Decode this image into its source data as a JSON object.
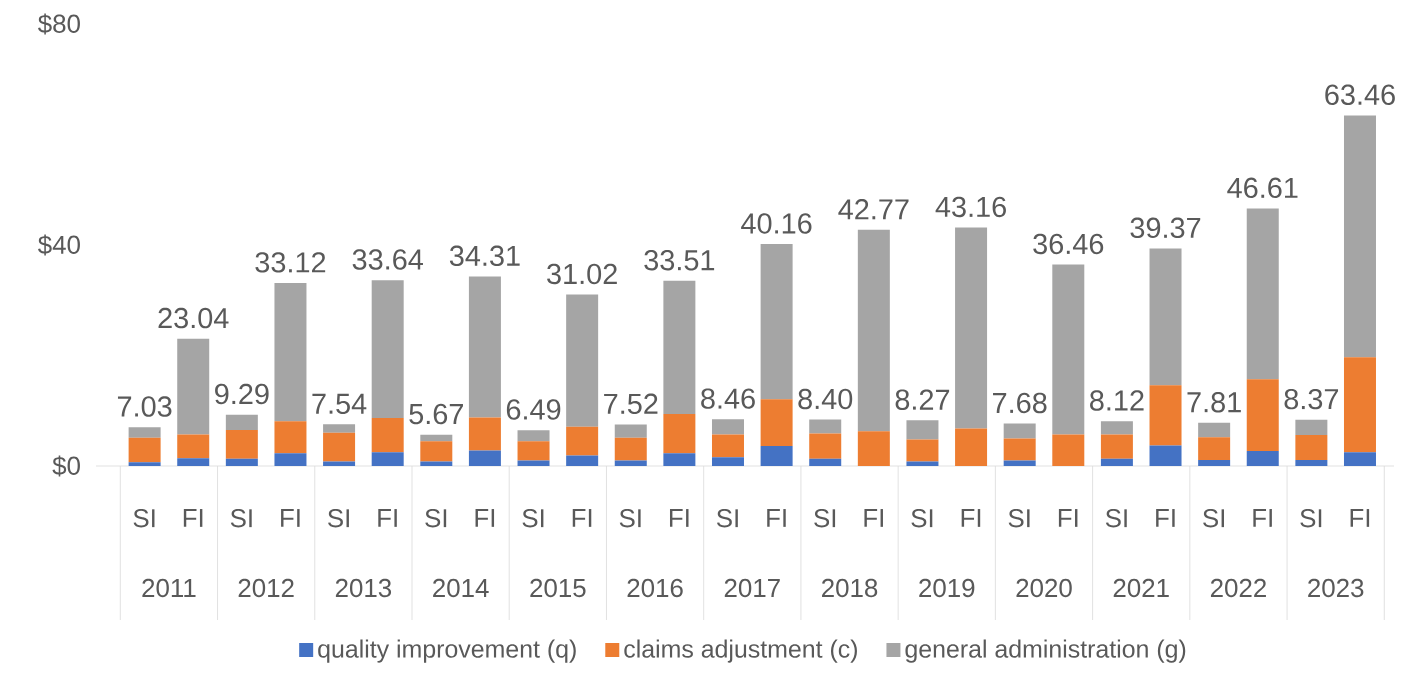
{
  "chart_data": {
    "type": "bar",
    "stacked": true,
    "categories": [
      "SI",
      "FI",
      "SI",
      "FI",
      "SI",
      "FI",
      "SI",
      "FI",
      "SI",
      "FI",
      "SI",
      "FI",
      "SI",
      "FI",
      "SI",
      "FI",
      "SI",
      "FI",
      "SI",
      "FI",
      "SI",
      "FI",
      "SI",
      "FI",
      "SI",
      "FI"
    ],
    "series": [
      {
        "name": "quality improvement (q)",
        "color": "#4472c4",
        "values": [
          0.7,
          1.4,
          1.3,
          2.3,
          0.8,
          2.5,
          0.8,
          2.8,
          1.0,
          1.9,
          1.0,
          2.3,
          1.6,
          3.6,
          1.3,
          0,
          0.8,
          0,
          1.0,
          0,
          1.3,
          3.7,
          1.1,
          2.7,
          1.1,
          2.5
        ]
      },
      {
        "name": "claims adjustment (c)",
        "color": "#ed7d31",
        "values": [
          4.4,
          4.3,
          5.2,
          5.8,
          5.2,
          6.2,
          3.7,
          6.0,
          3.5,
          5.2,
          4.1,
          7.1,
          4.1,
          8.5,
          4.6,
          6.3,
          4.0,
          6.8,
          4.0,
          5.7,
          4.4,
          10.9,
          4.1,
          13.0,
          4.5,
          17.2
        ]
      },
      {
        "name": "general administration (g)",
        "color": "#a5a5a5",
        "values": [
          1.93,
          17.34,
          2.79,
          25.02,
          1.54,
          24.94,
          1.17,
          25.51,
          1.99,
          23.92,
          2.42,
          24.11,
          2.76,
          28.06,
          2.5,
          36.47,
          3.47,
          36.36,
          2.68,
          30.76,
          2.42,
          24.77,
          2.61,
          30.91,
          2.77,
          43.76
        ]
      }
    ],
    "totals": [
      "7.03",
      "23.04",
      "9.29",
      "33.12",
      "7.54",
      "33.64",
      "5.67",
      "34.31",
      "6.49",
      "31.02",
      "7.52",
      "33.51",
      "8.46",
      "40.16",
      "8.40",
      "42.77",
      "8.27",
      "43.16",
      "7.68",
      "36.46",
      "8.12",
      "39.37",
      "7.81",
      "46.61",
      "8.37",
      "63.46"
    ],
    "annotations": [
      "2011",
      "2012",
      "2013",
      "2014",
      "2015",
      "2016",
      "2017",
      "2018",
      "2019",
      "2020",
      "2021",
      "2022",
      "2023"
    ],
    "ylim": [
      0,
      80
    ],
    "yticks": [
      {
        "value": 0,
        "label": "$0"
      },
      {
        "value": 40,
        "label": "$40"
      },
      {
        "value": 80,
        "label": "$80"
      }
    ],
    "legend": "bottom"
  }
}
